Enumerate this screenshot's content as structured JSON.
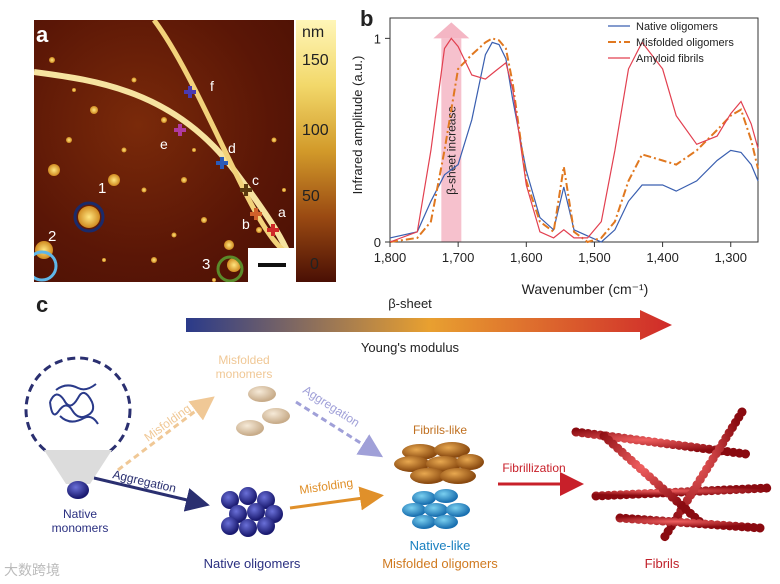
{
  "panel_labels": {
    "a": "a",
    "b": "b",
    "c": "c"
  },
  "panel_a": {
    "colorbar": {
      "unit": "nm",
      "ticks": [
        "150",
        "100",
        "50",
        "0"
      ]
    },
    "point_labels": [
      "a",
      "b",
      "c",
      "d",
      "e",
      "f"
    ],
    "circle_labels": [
      "1",
      "2",
      "3"
    ]
  },
  "chart_data": {
    "type": "line",
    "xlabel": "Wavenumber (cm⁻¹)",
    "ylabel": "Infrared amplitude (a.u.)",
    "xlim": [
      1800,
      1260
    ],
    "ylim": [
      0,
      1
    ],
    "xticks": [
      "1,800",
      "1,700",
      "1,600",
      "1,500",
      "1,400",
      "1,300"
    ],
    "yticks": [
      "0",
      "1"
    ],
    "annotation": "β-sheet increase",
    "legend_position": "top-right",
    "series": [
      {
        "name": "Native oligomers",
        "color": "#3a5fb0",
        "x": [
          1800,
          1760,
          1740,
          1720,
          1700,
          1680,
          1660,
          1650,
          1640,
          1630,
          1620,
          1600,
          1580,
          1560,
          1545,
          1530,
          1510,
          1490,
          1470,
          1450,
          1430,
          1400,
          1380,
          1350,
          1320,
          1300,
          1285,
          1270,
          1260
        ],
        "y": [
          0.02,
          0.05,
          0.2,
          0.33,
          0.38,
          0.6,
          0.92,
          0.98,
          0.97,
          0.9,
          0.7,
          0.35,
          0.12,
          0.06,
          0.27,
          0.06,
          0.03,
          0.0,
          0.06,
          0.2,
          0.28,
          0.28,
          0.25,
          0.3,
          0.4,
          0.45,
          0.44,
          0.38,
          0.3
        ]
      },
      {
        "name": "Misfolded oligomers",
        "color": "#e07820",
        "x": [
          1800,
          1760,
          1740,
          1720,
          1700,
          1680,
          1660,
          1650,
          1640,
          1630,
          1620,
          1600,
          1580,
          1560,
          1545,
          1530,
          1510,
          1490,
          1470,
          1450,
          1430,
          1400,
          1380,
          1350,
          1320,
          1300,
          1285,
          1270,
          1260
        ],
        "y": [
          0.0,
          0.02,
          0.1,
          0.45,
          0.85,
          0.92,
          0.98,
          1.0,
          0.99,
          0.95,
          0.78,
          0.3,
          0.1,
          0.05,
          0.37,
          0.05,
          0.0,
          0.02,
          0.1,
          0.3,
          0.43,
          0.4,
          0.38,
          0.45,
          0.55,
          0.62,
          0.65,
          0.5,
          0.36
        ]
      },
      {
        "name": "Amyloid fibrils",
        "color": "#e24050",
        "x": [
          1800,
          1760,
          1740,
          1720,
          1710,
          1700,
          1680,
          1660,
          1645,
          1630,
          1620,
          1600,
          1580,
          1560,
          1545,
          1530,
          1510,
          1490,
          1470,
          1450,
          1430,
          1400,
          1380,
          1350,
          1320,
          1300,
          1285,
          1270,
          1260
        ],
        "y": [
          0.0,
          0.05,
          0.45,
          0.95,
          1.0,
          0.96,
          0.82,
          0.8,
          0.84,
          0.88,
          0.75,
          0.28,
          0.05,
          0.02,
          0.06,
          0.02,
          0.02,
          0.1,
          0.45,
          0.85,
          0.98,
          0.85,
          0.62,
          0.48,
          0.52,
          0.63,
          0.69,
          0.58,
          0.46
        ]
      }
    ]
  },
  "panel_c": {
    "arrow_top_label": "β-sheet",
    "arrow_bottom_label": "Young's modulus",
    "labels": {
      "native_monomers": [
        "Native",
        "monomers"
      ],
      "misfolded_monomers": [
        "Misfolded",
        "monomers"
      ],
      "misfolding_1": "Misfolding",
      "aggregation_1": "Aggregation",
      "aggregation_2": "Aggregation",
      "misfolding_2": "Misfolding",
      "native_oligomers": "Native oligomers",
      "fibrils_like": "Fibrils-like",
      "native_like": "Native-like",
      "misfolded_oligomers": "Misfolded oligomers",
      "fibrillization": "Fibrillization",
      "fibrils": "Fibrils"
    }
  },
  "watermark": "大数跨境",
  "colors": {
    "native": "#2a2f8a",
    "misfolded": "#e08a20",
    "fibril": "#c0202a",
    "afm_dark": "#5a1606"
  }
}
